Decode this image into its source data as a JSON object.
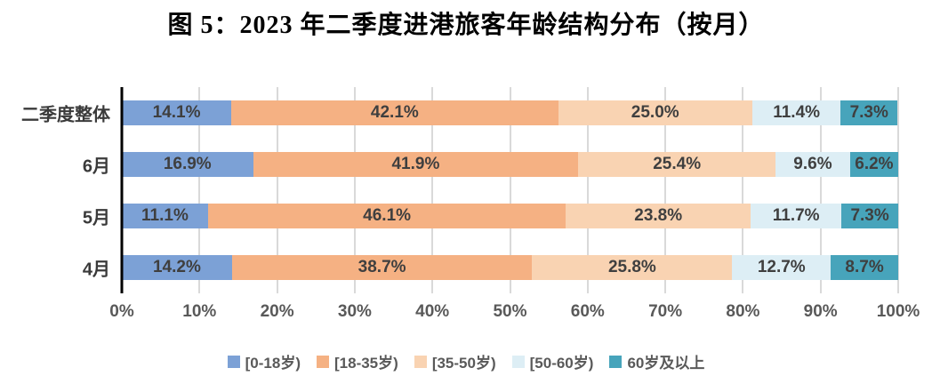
{
  "chart_data": {
    "type": "bar",
    "orientation": "horizontal",
    "stacked": true,
    "title": "图 5：2023 年二季度进港旅客年龄结构分布（按月）",
    "categories_top_to_bottom": [
      "二季度整体",
      "6月",
      "5月",
      "4月"
    ],
    "series": [
      {
        "name": "[0-18岁)",
        "color": "#7ca1d6",
        "values": [
          14.1,
          16.9,
          11.1,
          14.2
        ]
      },
      {
        "name": "[18-35岁)",
        "color": "#f5b183",
        "values": [
          42.1,
          41.9,
          46.1,
          38.7
        ]
      },
      {
        "name": "[35-50岁)",
        "color": "#f9d3b2",
        "values": [
          25.0,
          25.4,
          23.8,
          25.8
        ]
      },
      {
        "name": "[50-60岁)",
        "color": "#ddeef5",
        "values": [
          11.4,
          9.6,
          11.7,
          12.7
        ]
      },
      {
        "name": "60岁及以上",
        "color": "#47a4bb",
        "values": [
          7.3,
          6.2,
          7.3,
          8.7
        ]
      }
    ],
    "value_suffix": "%",
    "x_ticks": [
      "0%",
      "10%",
      "20%",
      "30%",
      "40%",
      "50%",
      "60%",
      "70%",
      "80%",
      "90%",
      "100%"
    ],
    "xlim": [
      0,
      100
    ],
    "grid": true,
    "legend_position": "bottom",
    "colors_meta": {
      "label_text": "#3f3f3f",
      "tick_text": "#595959",
      "gridline": "#d9d9d9",
      "axis_line": "#000000"
    }
  }
}
